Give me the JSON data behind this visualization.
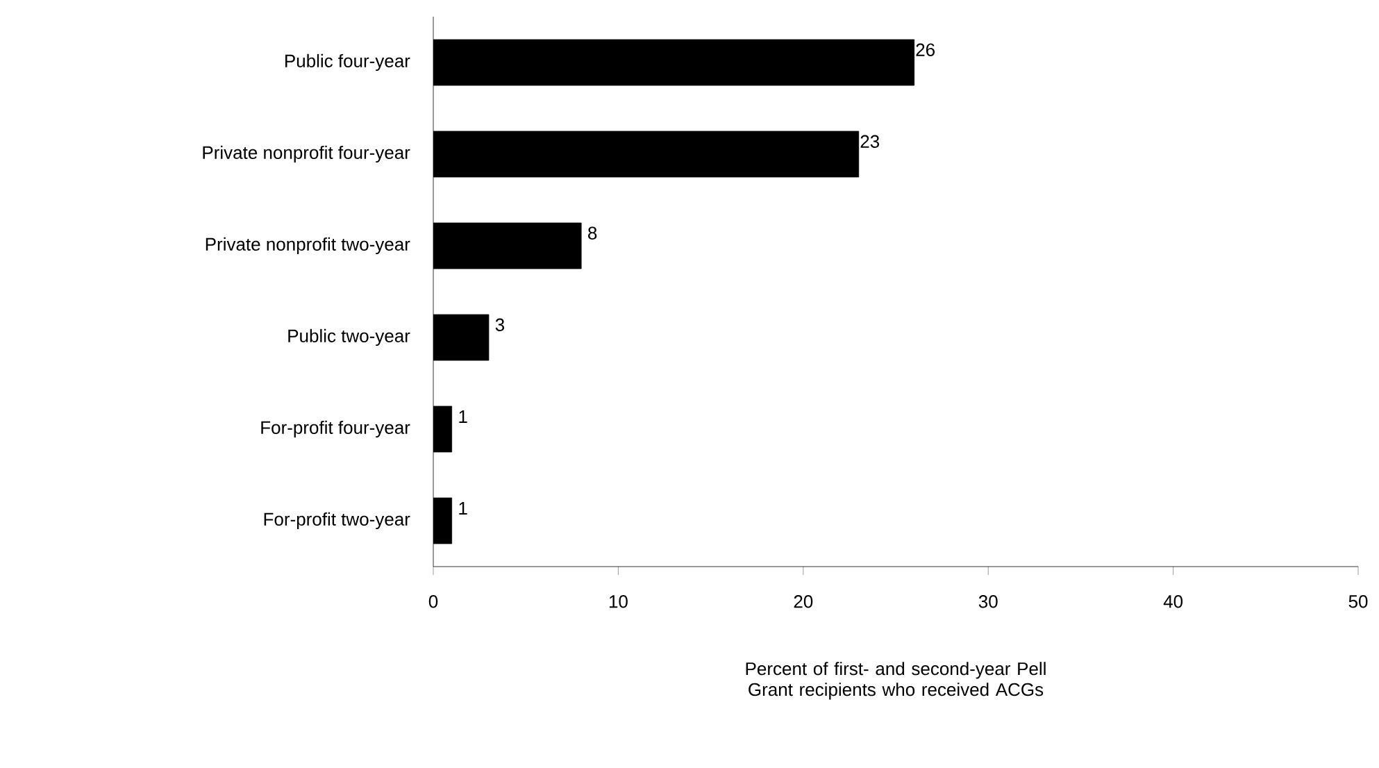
{
  "chart_data": {
    "type": "bar",
    "orientation": "horizontal",
    "categories": [
      "Public four-year",
      "Private nonprofit four-year",
      "Private nonprofit two-year",
      "Public two-year",
      "For-profit four-year",
      "For-profit two-year"
    ],
    "values": [
      26,
      23,
      8,
      3,
      1,
      1
    ],
    "color": "#000000",
    "xlim": [
      0,
      50
    ],
    "xticks": [
      0,
      10,
      20,
      30,
      40,
      50
    ],
    "xlabel": "Percent of first- and second-year Pell Grant recipients who received ACGs",
    "data_labels": true
  }
}
